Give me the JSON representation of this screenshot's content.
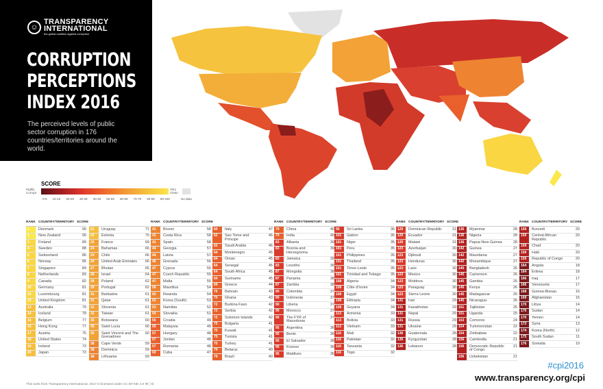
{
  "header": {
    "org_line1": "TRANSPARENCY",
    "org_line2": "INTERNATIONAL",
    "org_tagline": "the global coalition against corruption",
    "title_lines": [
      "CORRUPTION",
      "PERCEPTIONS",
      "INDEX 2016"
    ],
    "subtitle": "The perceived levels of public sector corruption in 176 countries/territories around the world."
  },
  "legend": {
    "title": "SCORE",
    "low_label": "Highly Corrupt",
    "high_label": "Very Clean",
    "no_data": "No data",
    "ranges": [
      "0-9",
      "10-19",
      "20-29",
      "30-39",
      "40-49",
      "50-59",
      "60-69",
      "70-79",
      "80-89",
      "90-100"
    ],
    "colors": [
      "#5a1216",
      "#7d1a1c",
      "#b3211f",
      "#d93a2b",
      "#e9602c",
      "#ee8431",
      "#f2a237",
      "#f6bf3c",
      "#f9d642",
      "#fbe84b"
    ]
  },
  "table_headers": {
    "rank": "RANK",
    "country": "COUNTRY/TERRITORY",
    "score": "SCORE"
  },
  "columns": [
    {
      "header": true,
      "rows": [
        [
          "1",
          "Denmark",
          "90"
        ],
        [
          "1",
          "New Zealand",
          "90"
        ],
        [
          "3",
          "Finland",
          "89"
        ],
        [
          "4",
          "Sweden",
          "88"
        ],
        [
          "5",
          "Switzerland",
          "86"
        ],
        [
          "6",
          "Norway",
          "85"
        ],
        [
          "7",
          "Singapore",
          "84"
        ],
        [
          "8",
          "Netherlands",
          "83"
        ],
        [
          "9",
          "Canada",
          "82"
        ],
        [
          "10",
          "Germany",
          "81"
        ],
        [
          "10",
          "Luxembourg",
          "81"
        ],
        [
          "10",
          "United Kingdom",
          "81"
        ],
        [
          "13",
          "Australia",
          "79"
        ],
        [
          "14",
          "Iceland",
          "78"
        ],
        [
          "15",
          "Belgium",
          "77"
        ],
        [
          "15",
          "Hong Kong",
          "77"
        ],
        [
          "17",
          "Austria",
          "75"
        ],
        [
          "18",
          "United States",
          "74"
        ],
        [
          "19",
          "Ireland",
          "73"
        ],
        [
          "20",
          "Japan",
          "72"
        ]
      ]
    },
    {
      "header": false,
      "rows": [
        [
          "21",
          "Uruguay",
          "71"
        ],
        [
          "22",
          "Estonia",
          "70"
        ],
        [
          "23",
          "France",
          "69"
        ],
        [
          "24",
          "Bahamas",
          "66"
        ],
        [
          "24",
          "Chile",
          "66"
        ],
        [
          "24",
          "United Arab Emirates",
          "66"
        ],
        [
          "27",
          "Bhutan",
          "65"
        ],
        [
          "28",
          "Israel",
          "64"
        ],
        [
          "29",
          "Poland",
          "62"
        ],
        [
          "29",
          "Portugal",
          "62"
        ],
        [
          "31",
          "Barbados",
          "61"
        ],
        [
          "31",
          "Qatar",
          "61"
        ],
        [
          "31",
          "Slovenia",
          "61"
        ],
        [
          "31",
          "Taiwan",
          "61"
        ],
        [
          "35",
          "Botswana",
          "60"
        ],
        [
          "35",
          "Saint Lucia",
          "60"
        ],
        [
          "35",
          "Saint Vincent and The Grenadines",
          "60"
        ],
        [
          "38",
          "Cape Verde",
          "59"
        ],
        [
          "38",
          "Dominica",
          "59"
        ],
        [
          "38",
          "Lithuania",
          "59"
        ]
      ]
    },
    {
      "header": true,
      "rows": [
        [
          "41",
          "Brunei",
          "58"
        ],
        [
          "41",
          "Costa Rica",
          "58"
        ],
        [
          "41",
          "Spain",
          "58"
        ],
        [
          "44",
          "Georgia",
          "57"
        ],
        [
          "44",
          "Latvia",
          "57"
        ],
        [
          "46",
          "Grenada",
          "56"
        ],
        [
          "47",
          "Cyprus",
          "55"
        ],
        [
          "47",
          "Czech Republic",
          "55"
        ],
        [
          "47",
          "Malta",
          "55"
        ],
        [
          "50",
          "Mauritius",
          "54"
        ],
        [
          "50",
          "Rwanda",
          "54"
        ],
        [
          "52",
          "Korea (South)",
          "53"
        ],
        [
          "53",
          "Namibia",
          "52"
        ],
        [
          "54",
          "Slovakia",
          "51"
        ],
        [
          "55",
          "Croatia",
          "49"
        ],
        [
          "55",
          "Malaysia",
          "49"
        ],
        [
          "57",
          "Hungary",
          "48"
        ],
        [
          "57",
          "Jordan",
          "48"
        ],
        [
          "57",
          "Romania",
          "48"
        ],
        [
          "60",
          "Cuba",
          "47"
        ]
      ]
    },
    {
      "header": false,
      "rows": [
        [
          "60",
          "Italy",
          "47"
        ],
        [
          "62",
          "Sao Tome and Principe",
          "46"
        ],
        [
          "62",
          "Saudi Arabia",
          "46"
        ],
        [
          "64",
          "Montenegro",
          "45"
        ],
        [
          "64",
          "Oman",
          "45"
        ],
        [
          "64",
          "Senegal",
          "45"
        ],
        [
          "64",
          "South Africa",
          "45"
        ],
        [
          "64",
          "Suriname",
          "45"
        ],
        [
          "69",
          "Greece",
          "44"
        ],
        [
          "70",
          "Bahrain",
          "43"
        ],
        [
          "70",
          "Ghana",
          "43"
        ],
        [
          "72",
          "Burkina Faso",
          "42"
        ],
        [
          "72",
          "Serbia",
          "42"
        ],
        [
          "72",
          "Solomon Islands",
          "42"
        ],
        [
          "75",
          "Bulgaria",
          "41"
        ],
        [
          "75",
          "Kuwait",
          "41"
        ],
        [
          "75",
          "Tunisia",
          "41"
        ],
        [
          "75",
          "Turkey",
          "41"
        ],
        [
          "79",
          "Belarus",
          "40"
        ],
        [
          "79",
          "Brazil",
          "40"
        ]
      ]
    },
    {
      "header": true,
      "rows": [
        [
          "79",
          "China",
          "40"
        ],
        [
          "79",
          "India",
          "40"
        ],
        [
          "83",
          "Albania",
          "39"
        ],
        [
          "83",
          "Bosnia and Herzegovina",
          "39"
        ],
        [
          "83",
          "Jamaica",
          "39"
        ],
        [
          "83",
          "Lesotho",
          "39"
        ],
        [
          "87",
          "Mongolia",
          "38"
        ],
        [
          "87",
          "Panama",
          "38"
        ],
        [
          "87",
          "Zambia",
          "38"
        ],
        [
          "90",
          "Colombia",
          "37"
        ],
        [
          "90",
          "Indonesia",
          "37"
        ],
        [
          "90",
          "Liberia",
          "37"
        ],
        [
          "90",
          "Morocco",
          "37"
        ],
        [
          "90",
          "The FYR of Macedonia",
          "37"
        ],
        [
          "95",
          "Argentina",
          "36"
        ],
        [
          "95",
          "Benin",
          "36"
        ],
        [
          "95",
          "El Salvador",
          "36"
        ],
        [
          "95",
          "Kosovo",
          "36"
        ],
        [
          "95",
          "Maldives",
          "36"
        ]
      ]
    },
    {
      "header": false,
      "rows": [
        [
          "95",
          "Sri Lanka",
          "36"
        ],
        [
          "101",
          "Gabon",
          "35"
        ],
        [
          "101",
          "Niger",
          "35"
        ],
        [
          "101",
          "Peru",
          "35"
        ],
        [
          "101",
          "Philippines",
          "35"
        ],
        [
          "101",
          "Thailand",
          "35"
        ],
        [
          "101",
          "Timor-Leste",
          "35"
        ],
        [
          "101",
          "Trinidad and Tobago",
          "35"
        ],
        [
          "108",
          "Algeria",
          "34"
        ],
        [
          "108",
          "Côte d'Ivoire",
          "34"
        ],
        [
          "108",
          "Egypt",
          "34"
        ],
        [
          "108",
          "Ethiopia",
          "34"
        ],
        [
          "108",
          "Guyana",
          "34"
        ],
        [
          "113",
          "Armenia",
          "33"
        ],
        [
          "113",
          "Bolivia",
          "33"
        ],
        [
          "113",
          "Vietnam",
          "33"
        ],
        [
          "116",
          "Mali",
          "32"
        ],
        [
          "116",
          "Pakistan",
          "32"
        ],
        [
          "116",
          "Tanzania",
          "32"
        ],
        [
          "116",
          "Togo",
          "32"
        ]
      ]
    },
    {
      "header": true,
      "rows": [
        [
          "120",
          "Dominican Republic",
          "31"
        ],
        [
          "120",
          "Ecuador",
          "31"
        ],
        [
          "120",
          "Malawi",
          "31"
        ],
        [
          "123",
          "Azerbaijan",
          "30"
        ],
        [
          "123",
          "Djibouti",
          "30"
        ],
        [
          "123",
          "Honduras",
          "30"
        ],
        [
          "123",
          "Laos",
          "30"
        ],
        [
          "123",
          "Mexico",
          "30"
        ],
        [
          "123",
          "Moldova",
          "30"
        ],
        [
          "123",
          "Paraguay",
          "30"
        ],
        [
          "123",
          "Sierra Leone",
          "30"
        ],
        [
          "131",
          "Iran",
          "29"
        ],
        [
          "131",
          "Kazakhstan",
          "29"
        ],
        [
          "131",
          "Nepal",
          "29"
        ],
        [
          "131",
          "Russia",
          "29"
        ],
        [
          "131",
          "Ukraine",
          "29"
        ],
        [
          "136",
          "Guatemala",
          "28"
        ],
        [
          "136",
          "Kyrgyzstan",
          "28"
        ],
        [
          "136",
          "Lebanon",
          "28"
        ]
      ]
    },
    {
      "header": false,
      "rows": [
        [
          "136",
          "Myanmar",
          "28"
        ],
        [
          "136",
          "Nigeria",
          "28"
        ],
        [
          "136",
          "Papua New Guinea",
          "28"
        ],
        [
          "142",
          "Guinea",
          "27"
        ],
        [
          "142",
          "Mauritania",
          "27"
        ],
        [
          "142",
          "Mozambique",
          "27"
        ],
        [
          "145",
          "Bangladesh",
          "26"
        ],
        [
          "145",
          "Cameroon",
          "26"
        ],
        [
          "145",
          "Gambia",
          "26"
        ],
        [
          "145",
          "Kenya",
          "26"
        ],
        [
          "145",
          "Madagascar",
          "26"
        ],
        [
          "145",
          "Nicaragua",
          "26"
        ],
        [
          "151",
          "Tajikistan",
          "25"
        ],
        [
          "151",
          "Uganda",
          "25"
        ],
        [
          "153",
          "Comoros",
          "24"
        ],
        [
          "154",
          "Turkmenistan",
          "22"
        ],
        [
          "154",
          "Zimbabwe",
          "22"
        ],
        [
          "156",
          "Cambodia",
          "21"
        ],
        [
          "156",
          "Democratic Republic of Congo",
          "21"
        ],
        [
          "156",
          "Uzbekistan",
          "21"
        ]
      ]
    },
    {
      "header": true,
      "rows": [
        [
          "159",
          "Burundi",
          "20"
        ],
        [
          "159",
          "Central African Republic",
          "20"
        ],
        [
          "159",
          "Chad",
          "20"
        ],
        [
          "159",
          "Haiti",
          "20"
        ],
        [
          "159",
          "Republic of Congo",
          "20"
        ],
        [
          "164",
          "Angola",
          "18"
        ],
        [
          "164",
          "Eritrea",
          "18"
        ],
        [
          "166",
          "Iraq",
          "17"
        ],
        [
          "166",
          "Venezuela",
          "17"
        ],
        [
          "168",
          "Guinea-Bissau",
          "16"
        ],
        [
          "169",
          "Afghanistan",
          "15"
        ],
        [
          "170",
          "Libya",
          "14"
        ],
        [
          "170",
          "Sudan",
          "14"
        ],
        [
          "170",
          "Yemen",
          "14"
        ],
        [
          "173",
          "Syria",
          "13"
        ],
        [
          "174",
          "Korea (North)",
          "12"
        ],
        [
          "175",
          "South Sudan",
          "11"
        ],
        [
          "176",
          "Somalia",
          "10"
        ]
      ]
    }
  ],
  "footer": {
    "hashtag": "#cpi2016",
    "url": "www.transparency.org/cpi",
    "license": "This work from Transparency International, 2017 is licensed under CC BY-ND 4.0 ⊜ⓘ⊝"
  }
}
